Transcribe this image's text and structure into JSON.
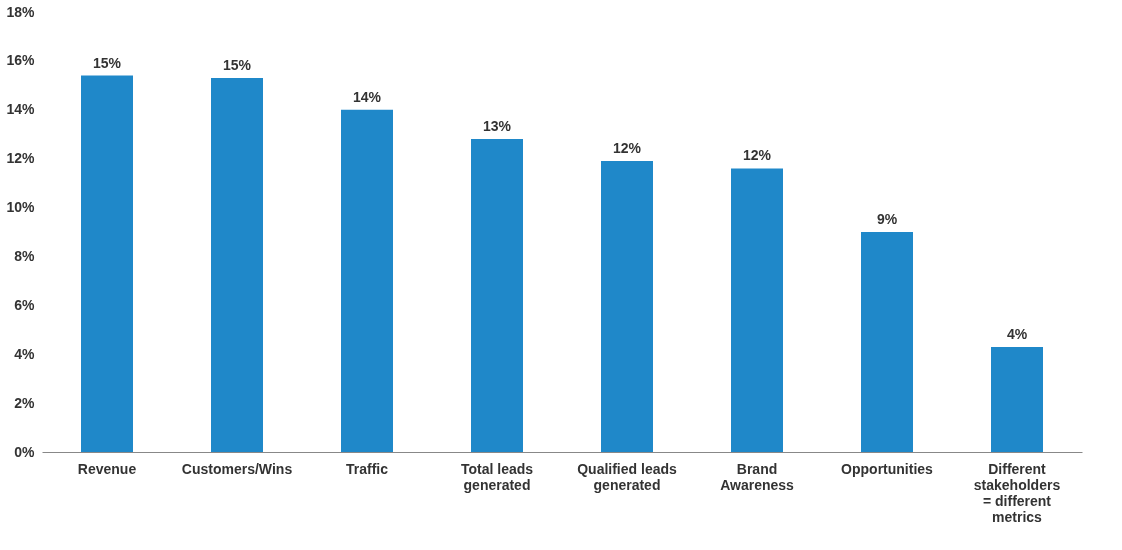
{
  "chart_data": {
    "type": "bar",
    "categories": [
      "Revenue",
      "Customers/Wins",
      "Traffic",
      "Total leads\ngenerated",
      "Qualified leads\ngenerated",
      "Brand\nAwareness",
      "Opportunities",
      "Different\nstakeholders\n= different\nmetrics"
    ],
    "values": [
      15.4,
      15.3,
      14.0,
      12.8,
      11.9,
      11.6,
      9.0,
      4.3
    ],
    "value_labels": [
      "15%",
      "15%",
      "14%",
      "13%",
      "12%",
      "12%",
      "9%",
      "4%"
    ],
    "color": "#1f88c9",
    "ylim": [
      0,
      18
    ],
    "yticks": [
      {
        "value": 0,
        "label": "0%"
      },
      {
        "value": 2,
        "label": "2%"
      },
      {
        "value": 4,
        "label": "4%"
      },
      {
        "value": 6,
        "label": "6%"
      },
      {
        "value": 8,
        "label": "8%"
      },
      {
        "value": 10,
        "label": "10%"
      },
      {
        "value": 12,
        "label": "12%"
      },
      {
        "value": 14,
        "label": "14%"
      },
      {
        "value": 16,
        "label": "16%"
      },
      {
        "value": 18,
        "label": "18%"
      }
    ],
    "grid": false
  }
}
